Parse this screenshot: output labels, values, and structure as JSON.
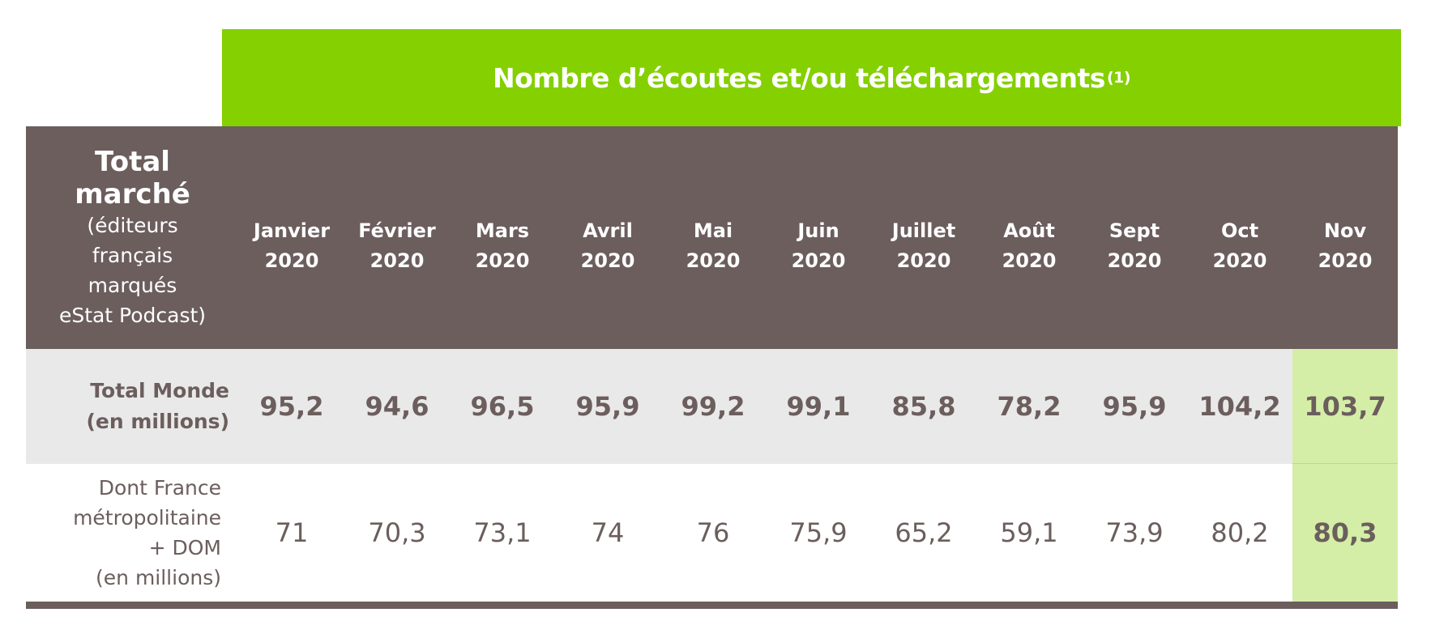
{
  "banner": {
    "title": "Nombre d’écoutes et/ou téléchargements",
    "footnote": "(1)"
  },
  "header": {
    "label_bold_1": "Total",
    "label_bold_2": "marché",
    "label_sub": [
      "(éditeurs",
      "français",
      "marqués",
      "eStat Podcast)"
    ],
    "months": [
      {
        "month": "Janvier",
        "year": "2020"
      },
      {
        "month": "Février",
        "year": "2020"
      },
      {
        "month": "Mars",
        "year": "2020"
      },
      {
        "month": "Avril",
        "year": "2020"
      },
      {
        "month": "Mai",
        "year": "2020"
      },
      {
        "month": "Juin",
        "year": "2020"
      },
      {
        "month": "Juillet",
        "year": "2020"
      },
      {
        "month": "Août",
        "year": "2020"
      },
      {
        "month": "Sept",
        "year": "2020"
      },
      {
        "month": "Oct",
        "year": "2020"
      },
      {
        "month": "Nov",
        "year": "2020"
      }
    ]
  },
  "rows": [
    {
      "label": [
        "Total Monde",
        "(en millions)"
      ],
      "values": [
        "95,2",
        "94,6",
        "96,5",
        "95,9",
        "99,2",
        "99,1",
        "85,8",
        "78,2",
        "95,9",
        "104,2",
        "103,7"
      ]
    },
    {
      "label": [
        "Dont France",
        "métropolitaine",
        "+ DOM",
        "(en millions)"
      ],
      "values": [
        "71",
        "70,3",
        "73,1",
        "74",
        "76",
        "75,9",
        "65,2",
        "59,1",
        "73,9",
        "80,2",
        "80,3"
      ]
    }
  ],
  "colors": {
    "banner": "#84D000",
    "header": "#6B5E5D",
    "highlight": "#D4EEA7",
    "row_alt": "#E9E9E9"
  }
}
